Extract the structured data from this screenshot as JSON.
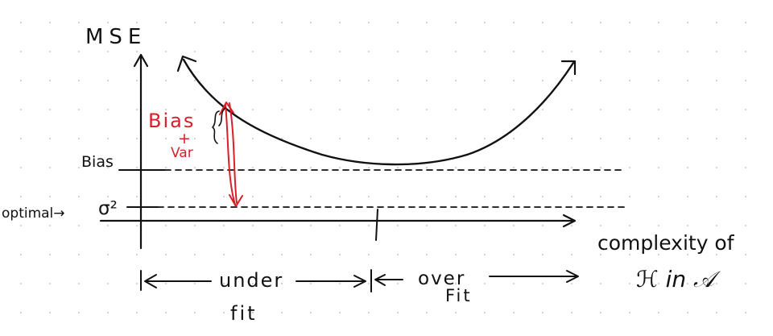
{
  "labels": {
    "y_axis": "MSE",
    "x_axis_line1": "complexity of",
    "x_axis_line2": "ℋ in 𝒜",
    "bias_level": "Bias",
    "optimal": "optimal→",
    "sigma_sq": "σ²",
    "bias_plus_var_top": "Bias",
    "bias_plus_var_plus": "+",
    "bias_plus_var_bottom": "Var",
    "underfit_line1": "under",
    "underfit_line2": "fit",
    "overfit_line1": "over",
    "overfit_line2": "Fit"
  },
  "colors": {
    "ink": "#111111",
    "annotation": "#d81f2a",
    "dot_grid": "#cfd3d8"
  }
}
